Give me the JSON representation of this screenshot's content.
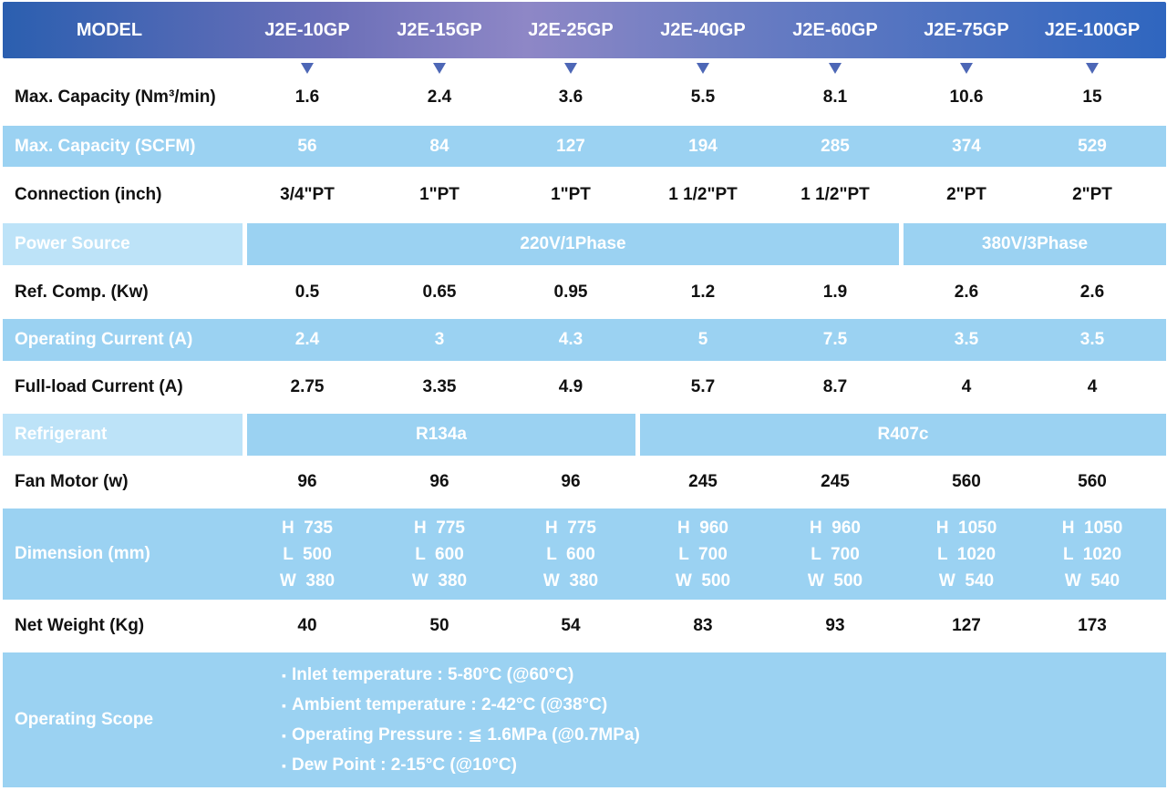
{
  "header": {
    "model_label": "MODEL",
    "models": [
      "J2E-10GP",
      "J2E-15GP",
      "J2E-25GP",
      "J2E-40GP",
      "J2E-60GP",
      "J2E-75GP",
      "J2E-100GP"
    ]
  },
  "rows": {
    "capacity_nm3": {
      "label": "Max. Capacity (Nm³/min)",
      "values": [
        "1.6",
        "2.4",
        "3.6",
        "5.5",
        "8.1",
        "10.6",
        "15"
      ]
    },
    "capacity_scfm": {
      "label": "Max. Capacity (SCFM)",
      "values": [
        "56",
        "84",
        "127",
        "194",
        "285",
        "374",
        "529"
      ]
    },
    "connection": {
      "label": "Connection (inch)",
      "values": [
        "3/4\"PT",
        "1\"PT",
        "1\"PT",
        "1 1/2\"PT",
        "1 1/2\"PT",
        "2\"PT",
        "2\"PT"
      ]
    },
    "power_source": {
      "label": "Power Source",
      "group1": "220V/1Phase",
      "group2": "380V/3Phase"
    },
    "ref_comp": {
      "label": "Ref. Comp. (Kw)",
      "values": [
        "0.5",
        "0.65",
        "0.95",
        "1.2",
        "1.9",
        "2.6",
        "2.6"
      ]
    },
    "operating_current": {
      "label": "Operating Current (A)",
      "values": [
        "2.4",
        "3",
        "4.3",
        "5",
        "7.5",
        "3.5",
        "3.5"
      ]
    },
    "full_load_current": {
      "label": "Full-load Current (A)",
      "values": [
        "2.75",
        "3.35",
        "4.9",
        "5.7",
        "8.7",
        "4",
        "4"
      ]
    },
    "refrigerant": {
      "label": "Refrigerant",
      "group1": "R134a",
      "group2": "R407c"
    },
    "fan_motor": {
      "label": "Fan Motor (w)",
      "values": [
        "96",
        "96",
        "96",
        "245",
        "245",
        "560",
        "560"
      ]
    },
    "dimension": {
      "label": "Dimension (mm)",
      "values": [
        [
          "H  735",
          "L  500",
          "W  380"
        ],
        [
          "H  775",
          "L  600",
          "W  380"
        ],
        [
          "H  775",
          "L  600",
          "W  380"
        ],
        [
          "H  960",
          "L  700",
          "W  500"
        ],
        [
          "H  960",
          "L  700",
          "W  500"
        ],
        [
          "H  1050",
          "L  1020",
          "W  540"
        ],
        [
          "H  1050",
          "L  1020",
          "W  540"
        ]
      ]
    },
    "net_weight": {
      "label": "Net Weight (Kg)",
      "values": [
        "40",
        "50",
        "54",
        "83",
        "93",
        "127",
        "173"
      ]
    },
    "operating_scope": {
      "label": "Operating Scope",
      "items": [
        "Inlet temperature : 5-80°C (@60°C)",
        "Ambient temperature : 2-42°C (@38°C)",
        "Operating Pressure : ≦ 1.6MPa (@0.7MPa)",
        "Dew Point : 2-15°C (@10°C)"
      ]
    }
  },
  "colors": {
    "header_start": "#2b5fb0",
    "header_mid": "#8e87c6",
    "row_shade": "#9bd2f2",
    "marker": "#4d67b6"
  }
}
